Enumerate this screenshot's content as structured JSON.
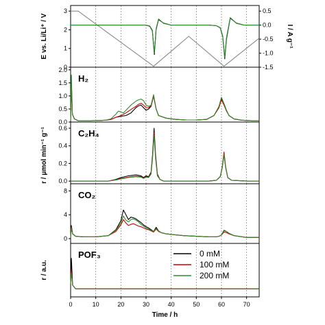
{
  "chart_data": [
    {
      "type": "line",
      "panel": "potential-current",
      "ylabel": "E vs. Li/Li⁺ / V",
      "ylabel_right": "I / A g⁻¹",
      "xlim": [
        0,
        75
      ],
      "ylim": [
        0,
        3.3
      ],
      "yticks": [
        0,
        1,
        2,
        3
      ],
      "ylim_right": [
        -1.5,
        0.7
      ],
      "yticks_right": [
        0.5,
        0.0,
        -0.5,
        -1.0,
        -1.5
      ],
      "yticks_right_labels": [
        "0.5",
        "0.0",
        "-0.5",
        "-1.0",
        "-1.5"
      ],
      "series": [
        {
          "axis": "left",
          "color": "#888888",
          "x": [
            0,
            3,
            33,
            47,
            61,
            75
          ],
          "y": [
            3.0,
            3.0,
            0.05,
            1.65,
            0.05,
            1.55
          ]
        },
        {
          "axis": "right",
          "color": "#000000",
          "x": [
            0,
            30,
            31.5,
            32.5,
            33.3,
            34,
            35,
            37,
            40,
            55,
            58,
            59.5,
            60.5,
            61.3,
            62,
            63.5,
            66,
            69,
            75
          ],
          "y": [
            0.0,
            0.0,
            -0.04,
            -0.2,
            -1.05,
            -0.15,
            0.2,
            0.07,
            0.0,
            0.0,
            -0.02,
            -0.1,
            -0.4,
            -1.2,
            -0.5,
            0.25,
            0.07,
            0.0,
            0.0
          ]
        },
        {
          "axis": "right",
          "color": "#2e8b2e",
          "x": [
            0,
            30,
            31.5,
            32.5,
            33.3,
            34,
            35,
            37,
            40,
            55,
            58,
            59.5,
            60.5,
            61.3,
            62,
            63.5,
            66,
            69,
            75
          ],
          "y": [
            0.0,
            0.0,
            -0.03,
            -0.18,
            -1.0,
            -0.12,
            0.22,
            0.06,
            0.0,
            0.0,
            -0.02,
            -0.09,
            -0.38,
            -1.15,
            -0.45,
            0.27,
            0.06,
            0.0,
            0.0
          ]
        }
      ]
    },
    {
      "type": "line",
      "panel": "H2",
      "label": "H₂",
      "xlim": [
        0,
        75
      ],
      "ylim": [
        0,
        2.1
      ],
      "yticks": [
        0.0,
        0.5,
        1.0,
        1.5,
        2.0
      ],
      "yticks_labels": [
        "0.0",
        "0.5",
        "1.0",
        "1.5",
        "2.0"
      ],
      "series": [
        {
          "name": "0 mM",
          "color": "#000000",
          "x": [
            0,
            0.3,
            0.7,
            1.5,
            3,
            8,
            12,
            14,
            16,
            18,
            20,
            22,
            24,
            26,
            27,
            28,
            29,
            30,
            31,
            32,
            33,
            34,
            35,
            38,
            42,
            46,
            50,
            54,
            57,
            59,
            60,
            61,
            62,
            63,
            65,
            68,
            72,
            75
          ],
          "y": [
            0.05,
            1.4,
            0.3,
            0.12,
            0.05,
            0.05,
            0.06,
            0.07,
            0.1,
            0.18,
            0.22,
            0.25,
            0.35,
            0.55,
            0.62,
            0.65,
            0.55,
            0.45,
            0.5,
            0.6,
            1.0,
            0.5,
            0.25,
            0.15,
            0.1,
            0.08,
            0.08,
            0.1,
            0.25,
            0.55,
            0.9,
            0.7,
            0.45,
            0.25,
            0.12,
            0.07,
            0.05,
            0.05
          ]
        },
        {
          "name": "100 mM",
          "color": "#cc0000",
          "x": [
            0,
            0.3,
            0.7,
            1.5,
            3,
            8,
            12,
            14,
            16,
            18,
            20,
            22,
            24,
            26,
            27,
            28,
            29,
            30,
            31,
            32,
            33,
            34,
            35,
            38,
            42,
            46,
            50,
            54,
            57,
            59,
            60,
            61,
            62,
            63,
            65,
            68,
            72,
            75
          ],
          "y": [
            0.05,
            1.5,
            0.3,
            0.12,
            0.05,
            0.05,
            0.06,
            0.07,
            0.1,
            0.18,
            0.25,
            0.35,
            0.48,
            0.6,
            0.68,
            0.72,
            0.65,
            0.55,
            0.55,
            0.62,
            1.0,
            0.5,
            0.25,
            0.15,
            0.1,
            0.08,
            0.08,
            0.1,
            0.25,
            0.55,
            0.85,
            0.65,
            0.42,
            0.25,
            0.12,
            0.07,
            0.05,
            0.05
          ]
        },
        {
          "name": "200 mM",
          "color": "#2e8b2e",
          "x": [
            0,
            0.3,
            0.7,
            1.5,
            3,
            8,
            12,
            14,
            16,
            18,
            19,
            20,
            21,
            22,
            24,
            26,
            27,
            28,
            29,
            30,
            31,
            32,
            33,
            34,
            35,
            38,
            42,
            46,
            50,
            54,
            57,
            59,
            60,
            61,
            62,
            63,
            65,
            68,
            72,
            75
          ],
          "y": [
            0.05,
            1.8,
            0.3,
            0.12,
            0.05,
            0.05,
            0.06,
            0.07,
            0.12,
            0.3,
            0.42,
            0.38,
            0.35,
            0.45,
            0.65,
            0.8,
            0.85,
            0.88,
            0.82,
            0.65,
            0.6,
            0.65,
            1.05,
            0.5,
            0.25,
            0.15,
            0.1,
            0.08,
            0.08,
            0.1,
            0.25,
            0.6,
            0.95,
            0.7,
            0.45,
            0.25,
            0.12,
            0.07,
            0.05,
            0.05
          ]
        }
      ]
    },
    {
      "type": "line",
      "panel": "C2H4",
      "label": "C₂H₄",
      "ylabel": "r / μmol min⁻¹ g⁻¹",
      "xlim": [
        0,
        75
      ],
      "ylim": [
        -0.03,
        0.67
      ],
      "yticks": [
        0.0,
        0.2,
        0.4,
        0.6
      ],
      "yticks_labels": [
        "0.0",
        "0.2",
        "0.4",
        "0.6"
      ],
      "series": [
        {
          "name": "0 mM",
          "color": "#000000",
          "x": [
            0,
            15,
            18,
            20,
            23,
            26,
            28,
            29,
            30,
            31,
            32,
            32.6,
            33.2,
            33.8,
            34.5,
            35.5,
            37,
            45,
            55,
            58,
            59.5,
            60.3,
            61,
            61.7,
            62.5,
            64,
            70,
            75
          ],
          "y": [
            0.0,
            0.0,
            0.02,
            0.04,
            0.06,
            0.07,
            0.06,
            0.04,
            0.06,
            0.05,
            0.1,
            0.3,
            0.6,
            0.3,
            0.08,
            0.02,
            0.0,
            0.0,
            0.0,
            0.01,
            0.05,
            0.15,
            0.3,
            0.15,
            0.04,
            0.01,
            0.0,
            0.0
          ]
        },
        {
          "name": "100 mM",
          "color": "#cc0000",
          "x": [
            0,
            15,
            18,
            20,
            23,
            26,
            28,
            29,
            30,
            31,
            32,
            32.6,
            33.2,
            33.8,
            34.5,
            35.5,
            37,
            45,
            55,
            58,
            59.5,
            60.3,
            61,
            61.7,
            62.5,
            64,
            70,
            75
          ],
          "y": [
            0.0,
            0.0,
            0.015,
            0.03,
            0.045,
            0.055,
            0.05,
            0.035,
            0.05,
            0.045,
            0.09,
            0.28,
            0.55,
            0.28,
            0.07,
            0.02,
            0.0,
            0.0,
            0.0,
            0.01,
            0.05,
            0.16,
            0.33,
            0.16,
            0.04,
            0.01,
            0.0,
            0.0
          ]
        },
        {
          "name": "200 mM",
          "color": "#2e8b2e",
          "x": [
            0,
            15,
            18,
            20,
            23,
            26,
            28,
            29,
            30,
            31,
            32,
            32.6,
            33.2,
            33.8,
            34.5,
            35.5,
            37,
            45,
            55,
            58,
            59.5,
            60.3,
            61,
            61.7,
            62.5,
            64,
            70,
            75
          ],
          "y": [
            0.0,
            0.0,
            0.012,
            0.025,
            0.04,
            0.05,
            0.045,
            0.03,
            0.045,
            0.04,
            0.08,
            0.26,
            0.52,
            0.26,
            0.06,
            0.02,
            0.0,
            0.0,
            0.0,
            0.01,
            0.05,
            0.15,
            0.3,
            0.15,
            0.04,
            0.01,
            0.0,
            0.0
          ]
        }
      ]
    },
    {
      "type": "line",
      "panel": "CO2",
      "label": "CO₂",
      "xlim": [
        0,
        75
      ],
      "ylim": [
        -0.8,
        9.2
      ],
      "yticks": [
        0,
        4,
        8
      ],
      "series": [
        {
          "name": "0 mM",
          "color": "#000000",
          "x": [
            0,
            0.3,
            0.8,
            2,
            5,
            10,
            15,
            18,
            20,
            21,
            22,
            23,
            24,
            25,
            26,
            27,
            28,
            29,
            30,
            31,
            32,
            33,
            34,
            35,
            36,
            38,
            45,
            50,
            55,
            58,
            59,
            60,
            61,
            62,
            63,
            65,
            70,
            75
          ],
          "y": [
            0.2,
            2.2,
            0.8,
            0.4,
            0.3,
            0.3,
            0.5,
            1.5,
            3.0,
            4.8,
            4.0,
            3.2,
            3.6,
            3.5,
            3.3,
            3.0,
            2.7,
            2.3,
            2.0,
            1.8,
            1.5,
            1.2,
            1.9,
            1.3,
            1.0,
            0.8,
            0.5,
            0.4,
            0.3,
            0.3,
            0.4,
            0.6,
            1.4,
            1.2,
            0.9,
            0.5,
            0.2,
            0.2
          ]
        },
        {
          "name": "100 mM",
          "color": "#cc0000",
          "x": [
            0,
            0.3,
            0.8,
            2,
            5,
            10,
            15,
            18,
            20,
            21,
            22,
            23,
            24,
            25,
            26,
            27,
            28,
            29,
            30,
            31,
            32,
            33,
            34,
            35,
            36,
            38,
            45,
            50,
            55,
            58,
            59,
            60,
            61,
            62,
            63,
            65,
            70,
            75
          ],
          "y": [
            0.2,
            2.0,
            0.8,
            0.4,
            0.3,
            0.3,
            0.5,
            1.2,
            2.3,
            3.2,
            2.6,
            2.2,
            2.4,
            2.5,
            2.3,
            2.1,
            2.0,
            1.8,
            1.6,
            1.5,
            1.3,
            1.1,
            1.6,
            1.2,
            1.0,
            0.8,
            0.5,
            0.4,
            0.3,
            0.3,
            0.4,
            0.6,
            1.1,
            1.0,
            0.8,
            0.5,
            0.2,
            0.2
          ]
        },
        {
          "name": "200 mM",
          "color": "#2e8b2e",
          "x": [
            0,
            0.3,
            0.8,
            2,
            5,
            10,
            15,
            18,
            20,
            21,
            22,
            23,
            24,
            25,
            26,
            27,
            28,
            29,
            30,
            31,
            32,
            33,
            34,
            35,
            36,
            38,
            45,
            50,
            55,
            58,
            59,
            60,
            61,
            62,
            63,
            65,
            70,
            75
          ],
          "y": [
            0.2,
            1.8,
            0.8,
            0.4,
            0.3,
            0.3,
            0.5,
            1.4,
            2.6,
            3.8,
            3.1,
            2.8,
            3.2,
            3.3,
            3.1,
            2.8,
            2.4,
            2.1,
            1.8,
            1.6,
            1.4,
            1.2,
            1.7,
            1.3,
            1.0,
            0.8,
            0.5,
            0.4,
            0.3,
            0.3,
            0.4,
            0.6,
            1.3,
            1.2,
            0.9,
            0.5,
            0.2,
            0.2
          ]
        }
      ]
    },
    {
      "type": "line",
      "panel": "POF3",
      "label": "POF₃",
      "ylabel": "r / a.u.",
      "xlabel": "Time / h",
      "xlim": [
        0,
        75
      ],
      "xticks": [
        0,
        10,
        20,
        30,
        40,
        50,
        60,
        70
      ],
      "ylim": [
        0,
        1
      ],
      "series": [
        {
          "name": "0 mM",
          "color": "#000000",
          "x": [
            0,
            0.3,
            0.8,
            2,
            10,
            20,
            30,
            40,
            50,
            60,
            70,
            75
          ],
          "y": [
            0.25,
            0.72,
            0.22,
            0.15,
            0.15,
            0.15,
            0.15,
            0.15,
            0.15,
            0.15,
            0.15,
            0.15
          ]
        },
        {
          "name": "100 mM",
          "color": "#cc0000",
          "x": [
            0,
            0.3,
            0.8,
            2,
            10,
            20,
            30,
            40,
            50,
            60,
            70,
            75
          ],
          "y": [
            0.25,
            0.5,
            0.22,
            0.15,
            0.15,
            0.15,
            0.15,
            0.15,
            0.15,
            0.15,
            0.15,
            0.15
          ]
        },
        {
          "name": "200 mM",
          "color": "#2e8b2e",
          "x": [
            0,
            0.3,
            0.8,
            2,
            10,
            20,
            30,
            40,
            50,
            60,
            70,
            75
          ],
          "y": [
            0.25,
            0.45,
            0.22,
            0.15,
            0.15,
            0.15,
            0.15,
            0.15,
            0.15,
            0.15,
            0.15,
            0.15
          ]
        }
      ],
      "legend": {
        "placement": "upper-right",
        "entries": [
          {
            "label": "0 mM",
            "color": "#000000"
          },
          {
            "label": "100 mM",
            "color": "#cc0000"
          },
          {
            "label": "200 mM",
            "color": "#2e8b2e"
          }
        ]
      }
    }
  ]
}
